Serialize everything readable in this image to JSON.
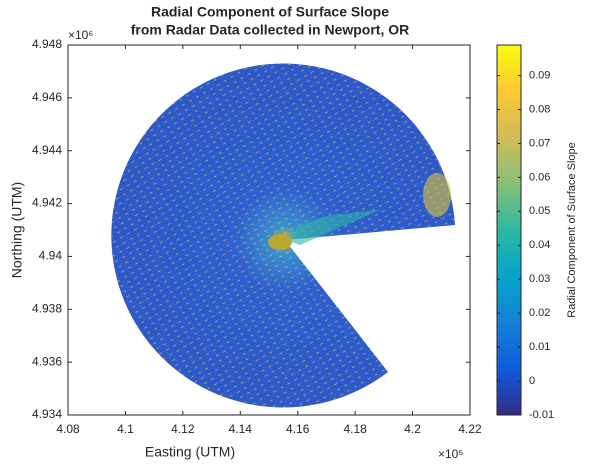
{
  "chart_data": {
    "type": "image",
    "title": "Radial Component of Surface Slope",
    "subtitle": "from Radar Data collected in Newport, OR",
    "x_label": "Easting (UTM)",
    "y_label": "Northing (UTM)",
    "x_exponent": "×10⁵",
    "y_exponent": "×10⁶",
    "xlim": [
      4.08,
      4.22
    ],
    "xticks": [
      4.08,
      4.1,
      4.12,
      4.14,
      4.16,
      4.18,
      4.2,
      4.22
    ],
    "ylim": [
      4.934,
      4.948
    ],
    "yticks": [
      4.934,
      4.936,
      4.938,
      4.94,
      4.942,
      4.944,
      4.946,
      4.948
    ],
    "colorbar": {
      "label": "Radial Component of Surface Slope",
      "lim": [
        -0.01,
        0.099
      ],
      "ticks": [
        -0.01,
        0,
        0.01,
        0.02,
        0.03,
        0.04,
        0.05,
        0.06,
        0.07,
        0.08,
        0.09
      ],
      "colors": [
        "#352a87",
        "#0f5cdd",
        "#1481d6",
        "#06a4ca",
        "#2eb7a4",
        "#87bf77",
        "#d1bb59",
        "#fec832",
        "#f9fb0e"
      ]
    },
    "grid": false
  }
}
